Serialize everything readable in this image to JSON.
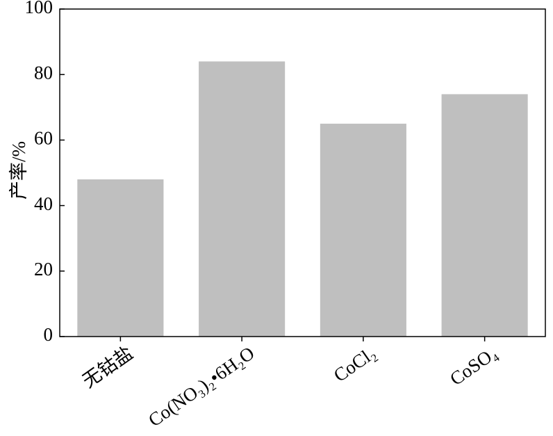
{
  "chart_data": {
    "type": "bar",
    "y_label": "产率/%",
    "categories": [
      "无钴盐",
      "Co(NO₃)₂•6H₂O",
      "CoCl₂",
      "CoSO₄"
    ],
    "values": [
      48,
      84,
      65,
      74
    ],
    "color": "#bfbfbf",
    "ylim": [
      0,
      100
    ],
    "yticks": [
      0,
      20,
      40,
      60,
      80,
      100
    ],
    "grid": false
  }
}
